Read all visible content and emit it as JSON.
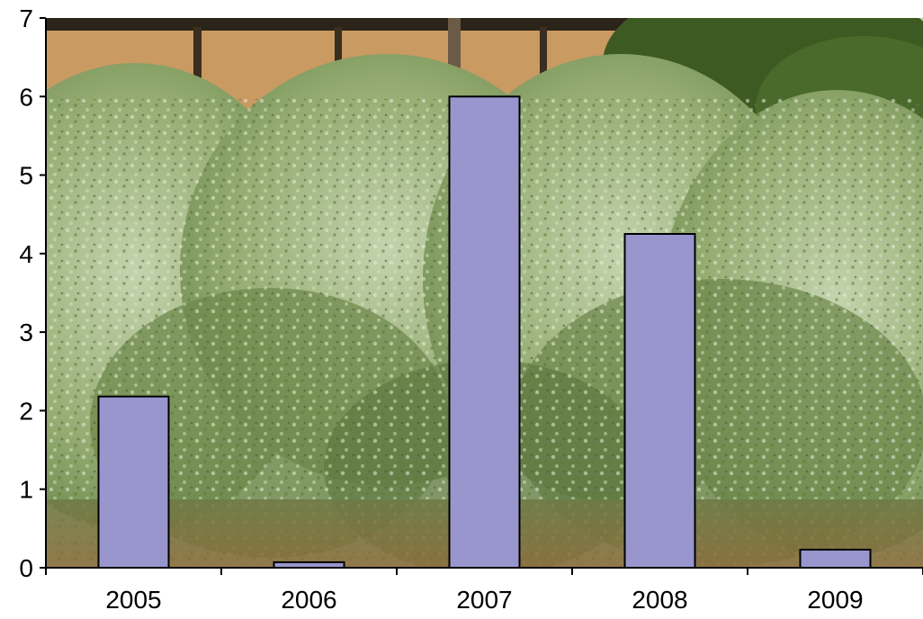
{
  "colors": {
    "bar_fill": "#9896cc",
    "bar_stroke": "#000000",
    "axis": "#000000",
    "sky": "#c9c2a6",
    "hill": "#c99a62",
    "shelter": "#2b2418",
    "trees": "#3d5a22",
    "shrub_light": "#b9c9a2",
    "shrub_mid": "#7f9a5c",
    "shrub_dark": "#4d6a34",
    "ground": "#8a6a3a"
  },
  "background": {
    "description_icon": "shrubland-photo-icon"
  },
  "chart_data": {
    "type": "bar",
    "categories": [
      "2005",
      "2006",
      "2007",
      "2008",
      "2009"
    ],
    "values": [
      2.18,
      0.07,
      6.0,
      4.25,
      0.23
    ],
    "title": "",
    "xlabel": "",
    "ylabel": "",
    "ylim": [
      0,
      7
    ],
    "yticks": [
      "0",
      "1",
      "2",
      "3",
      "4",
      "5",
      "6",
      "7"
    ],
    "grid": false,
    "legend": "none"
  }
}
